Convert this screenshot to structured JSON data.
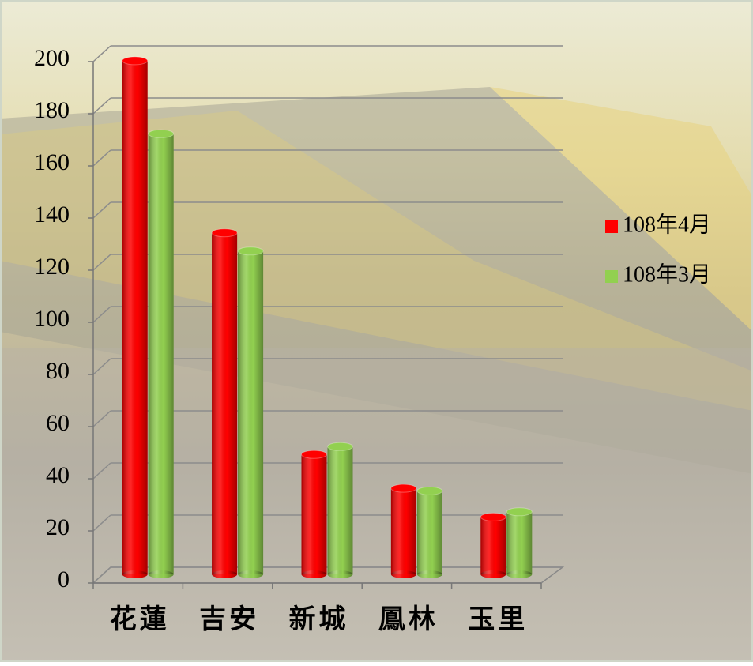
{
  "chart_data": {
    "type": "bar",
    "categories": [
      "花蓮",
      "吉安",
      "新城",
      "鳳林",
      "玉里"
    ],
    "series": [
      {
        "name": "108年4月",
        "color": "#ff0000",
        "values": [
          197,
          131,
          46,
          33,
          22
        ]
      },
      {
        "name": "108年3月",
        "color": "#92d050",
        "values": [
          169,
          124,
          49,
          32,
          24
        ]
      }
    ],
    "ylim": [
      0,
      200
    ],
    "yticks": [
      0,
      20,
      40,
      60,
      80,
      100,
      120,
      140,
      160,
      180,
      200
    ],
    "grid": true,
    "legend": "right"
  }
}
